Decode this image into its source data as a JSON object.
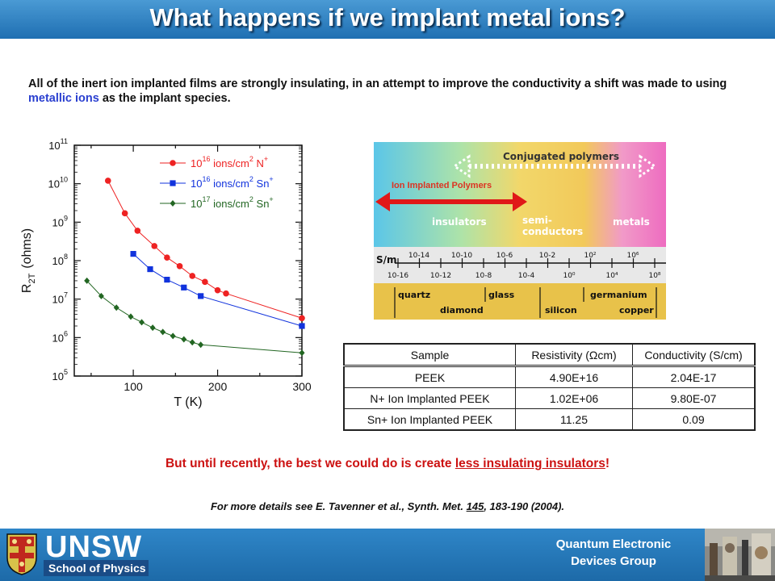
{
  "title": "What happens if we implant metal ions?",
  "intro": {
    "part1": "All of the inert ion implanted films are strongly insulating, in an attempt to improve the conductivity a shift was made to using ",
    "highlight": "metallic ions",
    "part2": " as the implant species."
  },
  "chart_data": {
    "type": "line",
    "xlabel": "T (K)",
    "ylabel_main": "R",
    "ylabel_sub": "2T",
    "ylabel_unit": "(ohms)",
    "xlim": [
      30,
      300
    ],
    "ylim": [
      100000,
      100000000000
    ],
    "yscale": "log",
    "x_ticks": [
      "100",
      "200",
      "300"
    ],
    "y_ticks": [
      {
        "base": "10",
        "exp": "5"
      },
      {
        "base": "10",
        "exp": "6"
      },
      {
        "base": "10",
        "exp": "7"
      },
      {
        "base": "10",
        "exp": "8"
      },
      {
        "base": "10",
        "exp": "9"
      },
      {
        "base": "10",
        "exp": "10"
      },
      {
        "base": "10",
        "exp": "11"
      }
    ],
    "series": [
      {
        "legend_pre": "10",
        "legend_exp": "16",
        "legend_mid": " ions/cm",
        "legend_mid_exp": "2",
        "legend_ion": " N",
        "legend_ion_exp": "+",
        "color": "#ee2222",
        "marker": "circle",
        "x": [
          70,
          90,
          105,
          125,
          140,
          155,
          170,
          185,
          200,
          210,
          300
        ],
        "y": [
          12000000000,
          1700000000,
          600000000,
          240000000,
          120000000,
          72000000,
          40000000,
          28000000,
          17000000,
          14000000,
          3200000
        ]
      },
      {
        "legend_pre": "10",
        "legend_exp": "16",
        "legend_mid": " ions/cm",
        "legend_mid_exp": "2",
        "legend_ion": " Sn",
        "legend_ion_exp": "+",
        "color": "#1133dd",
        "marker": "square",
        "x": [
          100,
          120,
          140,
          160,
          180,
          300
        ],
        "y": [
          150000000,
          60000000,
          32000000,
          20000000,
          12000000,
          2000000
        ]
      },
      {
        "legend_pre": "10",
        "legend_exp": "17",
        "legend_mid": " ions/cm",
        "legend_mid_exp": "2",
        "legend_ion": " Sn",
        "legend_ion_exp": "+",
        "color": "#226622",
        "marker": "diamond",
        "x": [
          45,
          62,
          80,
          97,
          110,
          123,
          135,
          147,
          160,
          170,
          180,
          300
        ],
        "y": [
          30000000,
          12000000,
          6000000,
          3500000,
          2500000,
          1800000,
          1400000,
          1100000,
          900000,
          750000,
          650000,
          400000
        ]
      }
    ]
  },
  "spectrum": {
    "heading": "Conjugated polymers",
    "ion_label": "Ion Implanted Polymers",
    "regions": [
      "insulators",
      "semi-",
      "conductors",
      "metals"
    ],
    "unit": "S/m",
    "scale_top": [
      "10-14",
      "10-10",
      "10-6",
      "10-2",
      "10²",
      "10⁶"
    ],
    "scale_bottom": [
      "10-16",
      "10-12",
      "10-8",
      "10-4",
      "10⁰",
      "10⁴",
      "10⁸"
    ],
    "materials_top": [
      "quartz",
      "glass",
      "germanium"
    ],
    "materials_bottom": [
      "diamond",
      "silicon",
      "copper"
    ]
  },
  "table": {
    "headers": [
      "Sample",
      "Resistivity (Ωcm)",
      "Conductivity (S/cm)"
    ],
    "rows": [
      [
        "PEEK",
        "4.90E+16",
        "2.04E-17"
      ],
      [
        "N+ Ion Implanted PEEK",
        "1.02E+06",
        "9.80E-07"
      ],
      [
        "Sn+ Ion Implanted PEEK",
        "11.25",
        "0.09"
      ]
    ]
  },
  "punchline": {
    "part1": "But until recently, the best we could do is create ",
    "underlined": "less insulating insulators",
    "part2": "!"
  },
  "reference": {
    "part1": "For more details see E. Tavenner  et al., Synth.  Met.  ",
    "volume": "145",
    "part2": ",  183-190  (2004)."
  },
  "footer": {
    "logo_text": "UNSW",
    "school": "School of Physics",
    "group_line1": "Quantum Electronic",
    "group_line2": "Devices Group"
  }
}
